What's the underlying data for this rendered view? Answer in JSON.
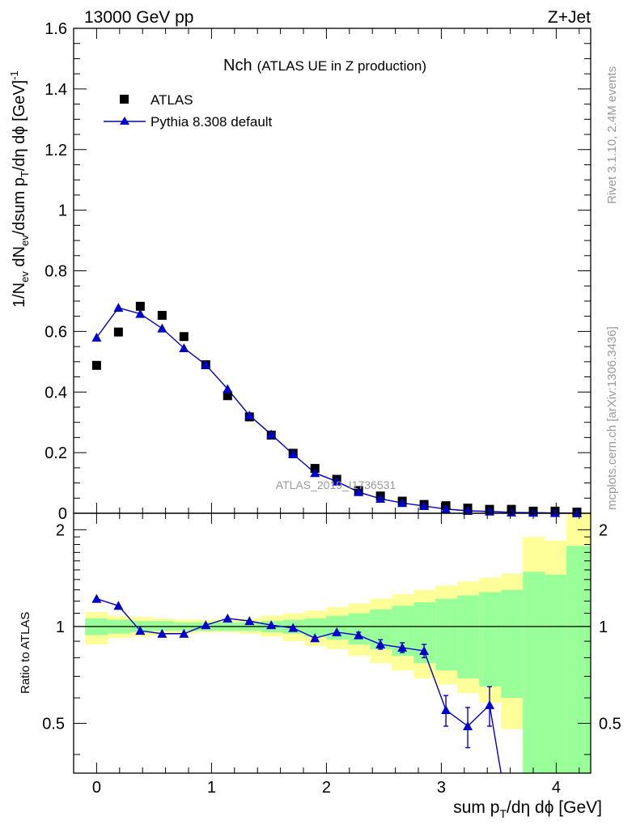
{
  "header": {
    "left": "13000 GeV pp",
    "right": "Z+Jet"
  },
  "side": {
    "top": "Rivet 3.1.10,  2.4M events",
    "bottom": "mcplots.cern.ch [arXiv:1306.3436]"
  },
  "chart_data": {
    "type": "scatter",
    "title": "Nch",
    "subtitle": "(ATLAS UE in Z production)",
    "watermark": "ATLAS_2019_I1736531",
    "xlabel": "sum p_T/dη dϕ [GeV]",
    "ylabel": "1/N_ev dN_ev/dsum p_T/dη dϕ [GeV]^-1",
    "ratio_ylabel": "Ratio to ATLAS",
    "xlim": [
      -0.2,
      4.3
    ],
    "ylim": [
      0,
      1.6
    ],
    "ratio_ylim": [
      0.35,
      2.25
    ],
    "x_ticks": [
      "0",
      "1",
      "2",
      "3",
      "4"
    ],
    "y_ticks": [
      "0",
      "0.2",
      "0.4",
      "0.6",
      "0.8",
      "1",
      "1.2",
      "1.4",
      "1.6"
    ],
    "ratio_ticks": [
      "0.5",
      "1",
      "2"
    ],
    "legend": {
      "data": "ATLAS",
      "mc": "Pythia 8.308 default"
    },
    "x": [
      0.0,
      0.19,
      0.38,
      0.57,
      0.76,
      0.95,
      1.14,
      1.33,
      1.52,
      1.71,
      1.9,
      2.09,
      2.28,
      2.47,
      2.66,
      2.85,
      3.04,
      3.23,
      3.42,
      3.61,
      3.8,
      3.99,
      4.18
    ],
    "series": [
      {
        "name": "ATLAS",
        "values": [
          0.488,
          0.598,
          0.683,
          0.653,
          0.583,
          0.49,
          0.388,
          0.318,
          0.258,
          0.198,
          0.148,
          0.112,
          0.075,
          0.057,
          0.04,
          0.029,
          0.025,
          0.017,
          0.013,
          0.013,
          0.007,
          0.007,
          0.004
        ]
      },
      {
        "name": "Pythia 8.308 default",
        "values": [
          0.58,
          0.678,
          0.658,
          0.61,
          0.545,
          0.49,
          0.41,
          0.323,
          0.26,
          0.195,
          0.133,
          0.105,
          0.07,
          0.048,
          0.034,
          0.024,
          0.014,
          0.008,
          0.006,
          0.003,
          0.002,
          0.001,
          0.0005
        ]
      }
    ],
    "ratio": {
      "x": [
        0.0,
        0.19,
        0.38,
        0.57,
        0.76,
        0.95,
        1.14,
        1.33,
        1.52,
        1.71,
        1.9,
        2.09,
        2.28,
        2.47,
        2.66,
        2.85,
        3.04,
        3.23,
        3.42
      ],
      "values": [
        1.22,
        1.16,
        0.97,
        0.95,
        0.95,
        1.01,
        1.06,
        1.04,
        1.01,
        0.99,
        0.92,
        0.96,
        0.94,
        0.88,
        0.86,
        0.84,
        0.55,
        0.49,
        0.57
      ],
      "errors": [
        0.0,
        0.0,
        0.0,
        0.0,
        0.0,
        0.0,
        0.0,
        0.0,
        0.0,
        0.0,
        0.0,
        0.0,
        0.02,
        0.03,
        0.03,
        0.04,
        0.06,
        0.07,
        0.08
      ],
      "tail_x": 3.52,
      "tail_y": 0.35
    },
    "bands": {
      "edges": [
        -0.1,
        0.1,
        0.29,
        0.48,
        0.67,
        0.86,
        1.05,
        1.24,
        1.43,
        1.62,
        1.81,
        2.0,
        2.19,
        2.38,
        2.57,
        2.76,
        2.95,
        3.14,
        3.33,
        3.52,
        3.71,
        3.9,
        4.09,
        4.3
      ],
      "yellow_lo": [
        0.88,
        0.92,
        0.93,
        0.94,
        0.95,
        0.96,
        0.96,
        0.95,
        0.93,
        0.9,
        0.87,
        0.85,
        0.81,
        0.77,
        0.73,
        0.69,
        0.66,
        0.62,
        0.58,
        0.48,
        0.35,
        0.35,
        0.35
      ],
      "yellow_hi": [
        1.11,
        1.08,
        1.07,
        1.06,
        1.05,
        1.05,
        1.05,
        1.06,
        1.08,
        1.1,
        1.12,
        1.15,
        1.18,
        1.22,
        1.26,
        1.3,
        1.34,
        1.38,
        1.42,
        1.46,
        1.9,
        1.85,
        2.25
      ],
      "green_lo": [
        0.94,
        0.95,
        0.96,
        0.97,
        0.97,
        0.97,
        0.97,
        0.97,
        0.96,
        0.95,
        0.93,
        0.91,
        0.88,
        0.85,
        0.81,
        0.77,
        0.73,
        0.69,
        0.65,
        0.6,
        0.35,
        0.35,
        0.35
      ],
      "green_hi": [
        1.06,
        1.05,
        1.04,
        1.04,
        1.03,
        1.03,
        1.03,
        1.03,
        1.04,
        1.05,
        1.06,
        1.08,
        1.1,
        1.13,
        1.16,
        1.19,
        1.22,
        1.25,
        1.28,
        1.3,
        1.48,
        1.45,
        1.78
      ]
    },
    "colors": {
      "mc": "#0000cc",
      "data": "#000000",
      "yellow": "#ffff99",
      "green": "#99ff99"
    }
  }
}
